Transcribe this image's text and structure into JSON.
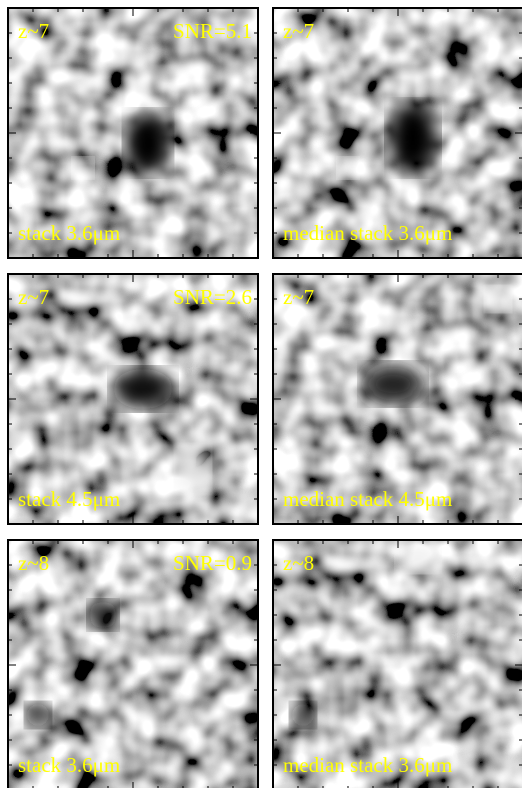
{
  "panels": [
    {
      "redshift": "z~7",
      "snr": "SNR=5.1",
      "label": "stack 3.6μm"
    },
    {
      "redshift": "z~7",
      "label": "median stack 3.6μm"
    },
    {
      "redshift": "z~7",
      "snr": "SNR=2.6",
      "label": "stack 4.5μm"
    },
    {
      "redshift": "z~7",
      "label": "median stack 4.5μm"
    },
    {
      "redshift": "z~8",
      "snr": "SNR=0.9",
      "label": "stack 3.6μm"
    },
    {
      "redshift": "z~8",
      "label": "median stack 3.6μm"
    }
  ]
}
